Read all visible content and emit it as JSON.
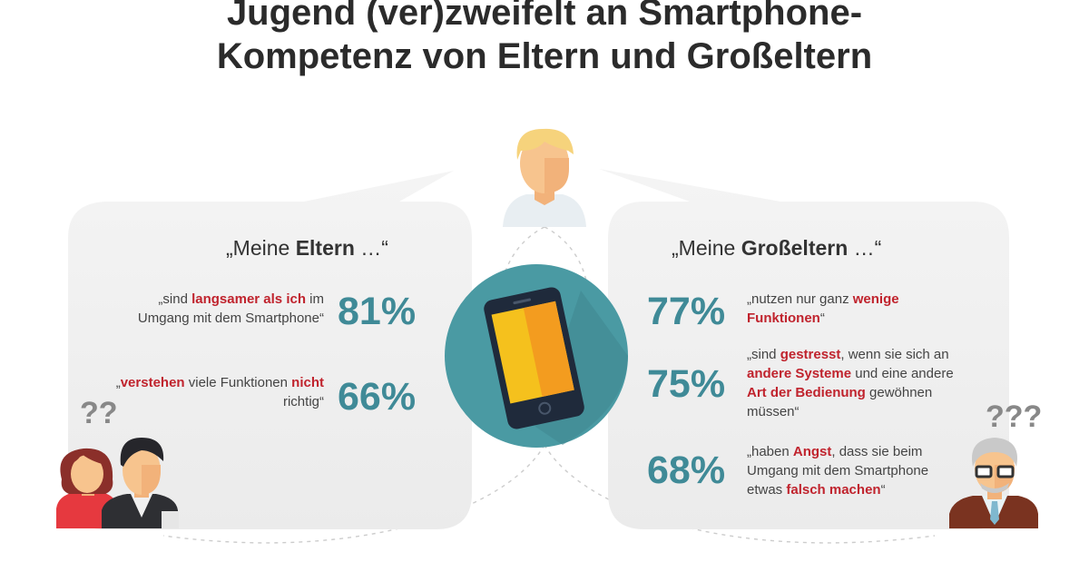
{
  "title": {
    "line1": "Jugend (ver)zweifelt an Smartphone-",
    "line2": "Kompetenz von Eltern und Großeltern"
  },
  "left_panel": {
    "heading_open": "„Meine ",
    "heading_bold": "Eltern",
    "heading_close": " …“",
    "items": [
      {
        "percent": "81%",
        "parts": [
          {
            "text": "„sind ",
            "highlight": false
          },
          {
            "text": "langsamer als ich",
            "highlight": true
          },
          {
            "text": " im Umgang mit dem Smartphone“",
            "highlight": false
          }
        ]
      },
      {
        "percent": "66%",
        "parts": [
          {
            "text": "„",
            "highlight": false
          },
          {
            "text": "verstehen",
            "highlight": true
          },
          {
            "text": " viele Funktionen ",
            "highlight": false
          },
          {
            "text": "nicht",
            "highlight": true
          },
          {
            "text": " richtig“",
            "highlight": false
          }
        ]
      }
    ]
  },
  "right_panel": {
    "heading_open": "„Meine ",
    "heading_bold": "Großeltern",
    "heading_close": " …“",
    "items": [
      {
        "percent": "77%",
        "parts": [
          {
            "text": "„nutzen nur ganz ",
            "highlight": false
          },
          {
            "text": "wenige Funktionen",
            "highlight": true
          },
          {
            "text": "“",
            "highlight": false
          }
        ]
      },
      {
        "percent": "75%",
        "parts": [
          {
            "text": "„sind ",
            "highlight": false
          },
          {
            "text": "gestresst",
            "highlight": true
          },
          {
            "text": ", wenn sie sich an ",
            "highlight": false
          },
          {
            "text": "andere Systeme",
            "highlight": true
          },
          {
            "text": " und eine andere ",
            "highlight": false
          },
          {
            "text": "Art der Bedienung",
            "highlight": true
          },
          {
            "text": " gewöhnen müssen“",
            "highlight": false
          }
        ]
      },
      {
        "percent": "68%",
        "parts": [
          {
            "text": "„haben ",
            "highlight": false
          },
          {
            "text": "Angst",
            "highlight": true
          },
          {
            "text": ", dass sie beim Umgang mit dem Smartphone etwas ",
            "highlight": false
          },
          {
            "text": "falsch machen",
            "highlight": true
          },
          {
            "text": "“",
            "highlight": false
          }
        ]
      }
    ]
  },
  "question_marks": {
    "left": "??",
    "right": "???"
  },
  "colors": {
    "highlight": "#c0232d",
    "percent": "#3f8a97",
    "circle": "#4a9aa3",
    "bubble": "#f0f0f0"
  },
  "icons": [
    "teen-avatar-icon",
    "smartphone-icon",
    "parents-icon",
    "grandfather-icon"
  ]
}
